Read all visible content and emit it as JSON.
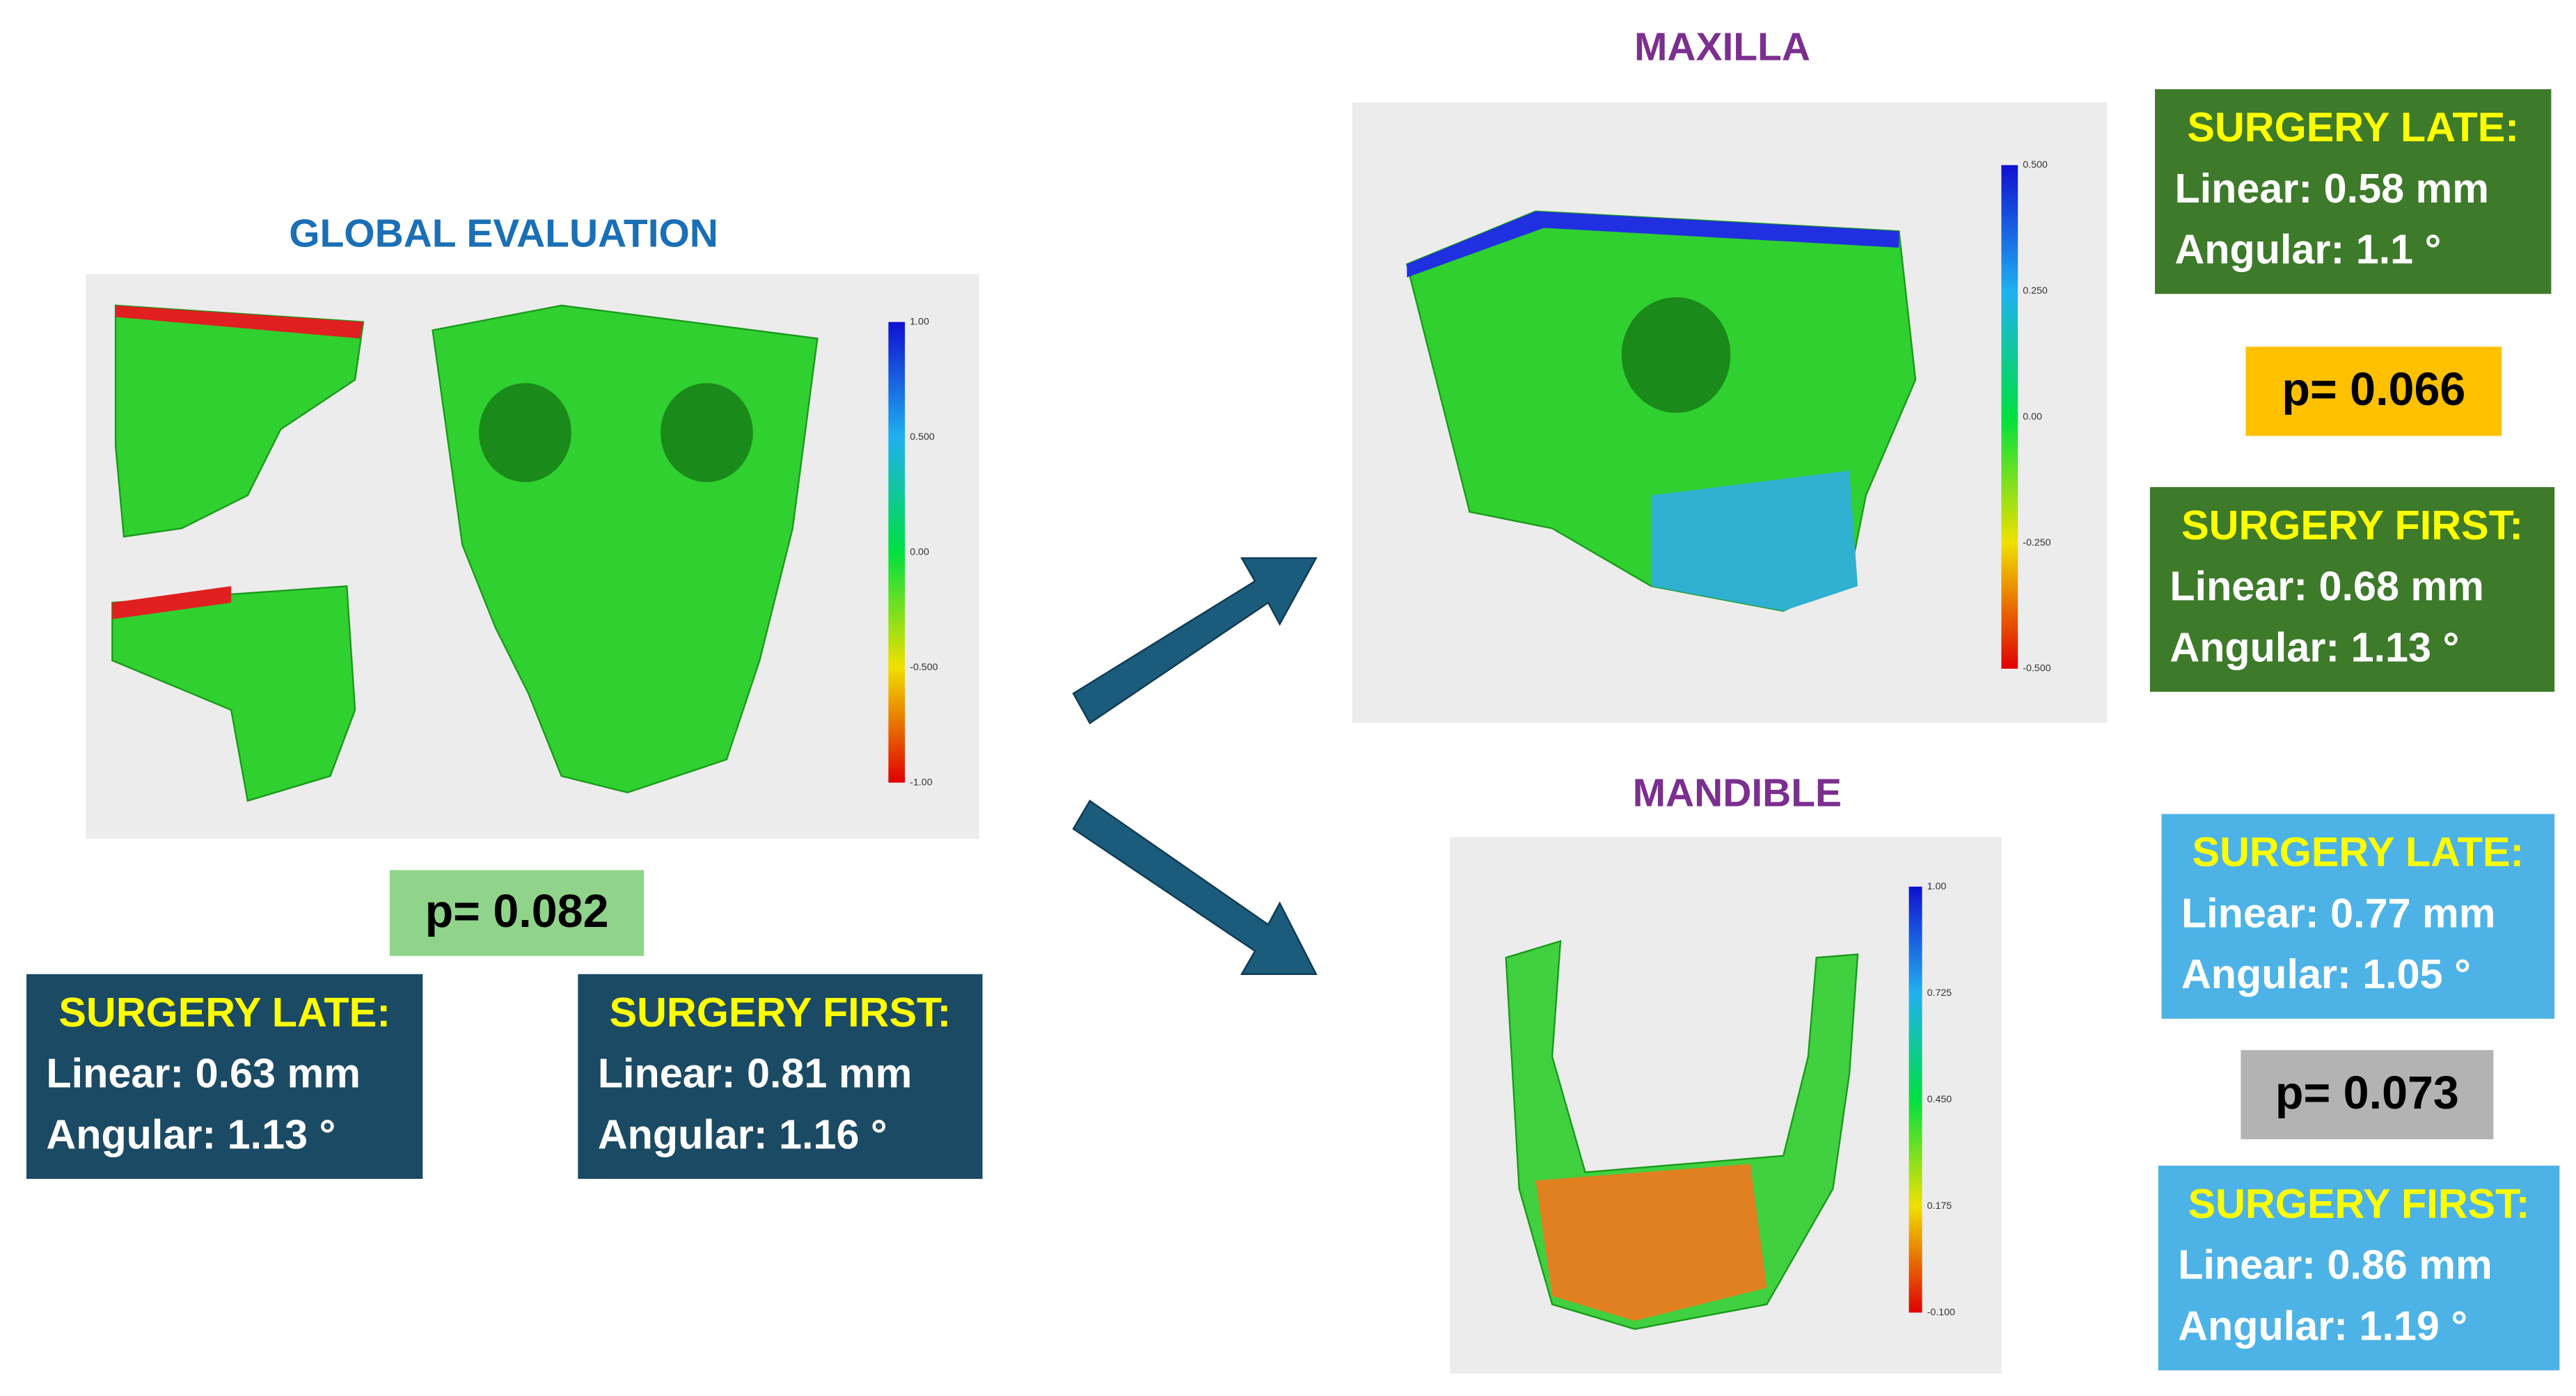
{
  "global": {
    "title": "GLOBAL EVALUATION",
    "colorbar": [
      "1.00",
      "0.500",
      "0.00",
      "-0.500",
      "-1.00"
    ],
    "p_value": "p= 0.082",
    "surgery_late": {
      "heading": "SURGERY LATE:",
      "linear": "Linear: 0.63 mm",
      "angular": "Angular: 1.13 °"
    },
    "surgery_first": {
      "heading": "SURGERY FIRST:",
      "linear": "Linear: 0.81 mm",
      "angular": "Angular: 1.16 °"
    }
  },
  "maxilla": {
    "title": "MAXILLA",
    "colorbar": [
      "0.500",
      "0.250",
      "0.00",
      "-0.250",
      "-0.500"
    ],
    "p_value": "p= 0.066",
    "surgery_late": {
      "heading": "SURGERY LATE:",
      "linear": "Linear: 0.58 mm",
      "angular": "Angular: 1.1 °"
    },
    "surgery_first": {
      "heading": "SURGERY FIRST:",
      "linear": "Linear: 0.68 mm",
      "angular": "Angular: 1.13 °"
    }
  },
  "mandible": {
    "title": "MANDIBLE",
    "colorbar": [
      "1.00",
      "0.725",
      "0.450",
      "0.175",
      "-0.100"
    ],
    "p_value": "p= 0.073",
    "surgery_late": {
      "heading": "SURGERY LATE:",
      "linear": "Linear: 0.77 mm",
      "angular": "Angular: 1.05 °"
    },
    "surgery_first": {
      "heading": "SURGERY FIRST:",
      "linear": "Linear: 0.86 mm",
      "angular": "Angular: 1.19 °"
    }
  }
}
